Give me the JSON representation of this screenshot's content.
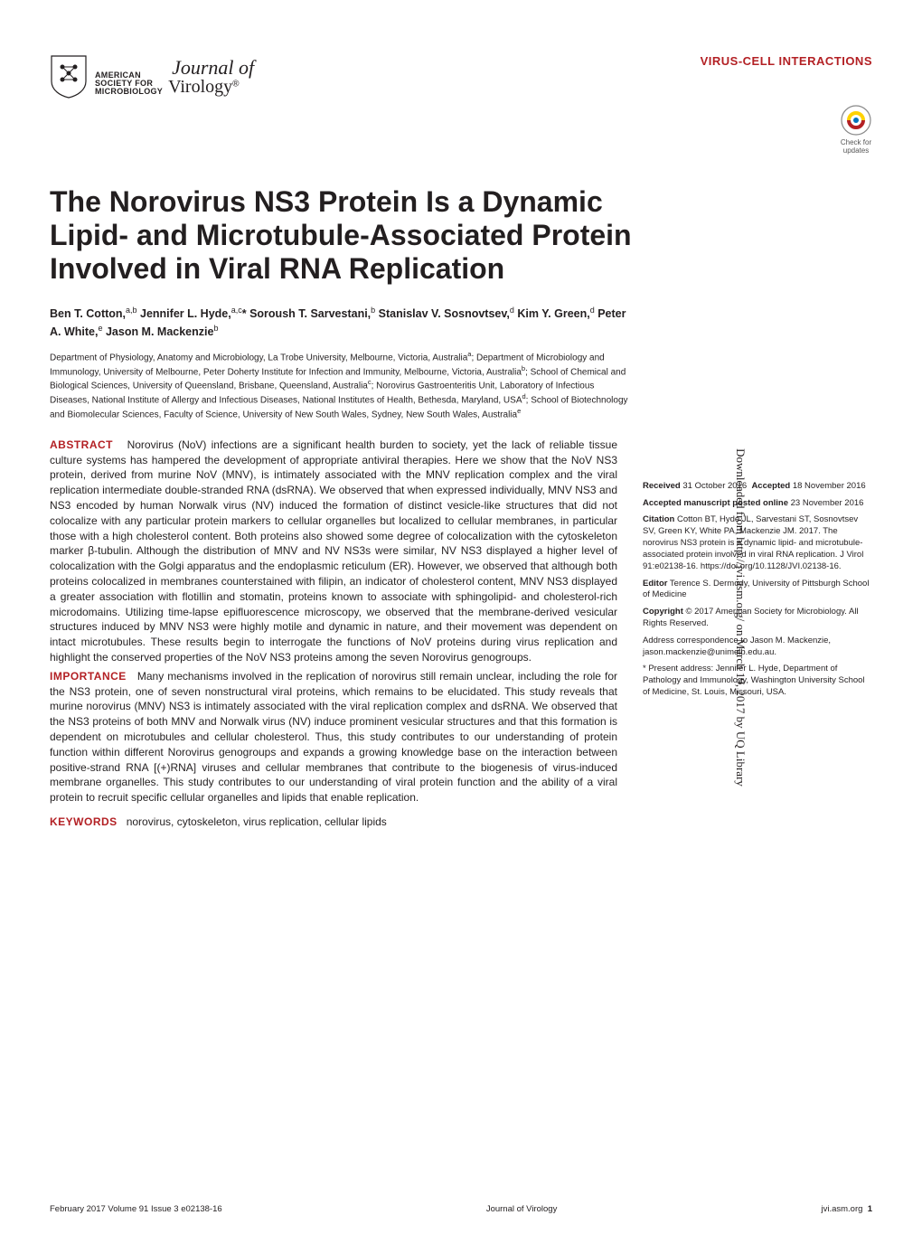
{
  "header": {
    "asm_line1": "AMERICAN",
    "asm_line2": "SOCIETY FOR",
    "asm_line3": "MICROBIOLOGY",
    "journal_name": "Journal of",
    "virology": "Virology",
    "reg_mark": "®",
    "section_label": "VIRUS-CELL INTERACTIONS",
    "crossmark_line1": "Check for",
    "crossmark_line2": "updates"
  },
  "title": "The Norovirus NS3 Protein Is a Dynamic Lipid- and Microtubule-Associated Protein Involved in Viral RNA Replication",
  "authors_html": "Ben T. Cotton,<sup>a,b</sup> Jennifer L. Hyde,<sup>a,c</sup>* Soroush T. Sarvestani,<sup>b</sup> Stanislav V. Sosnovtsev,<sup>d</sup> Kim Y. Green,<sup>d</sup> Peter A. White,<sup>e</sup> Jason M. Mackenzie<sup>b</sup>",
  "affiliations_html": "Department of Physiology, Anatomy and Microbiology, La Trobe University, Melbourne, Victoria, Australia<sup>a</sup>; Department of Microbiology and Immunology, University of Melbourne, Peter Doherty Institute for Infection and Immunity, Melbourne, Victoria, Australia<sup>b</sup>; School of Chemical and Biological Sciences, University of Queensland, Brisbane, Queensland, Australia<sup>c</sup>; Norovirus Gastroenteritis Unit, Laboratory of Infectious Diseases, National Institute of Allergy and Infectious Diseases, National Institutes of Health, Bethesda, Maryland, USA<sup>d</sup>; School of Biotechnology and Biomolecular Sciences, Faculty of Science, University of New South Wales, Sydney, New South Wales, Australia<sup>e</sup>",
  "abstract": {
    "label": "ABSTRACT",
    "text": "Norovirus (NoV) infections are a significant health burden to society, yet the lack of reliable tissue culture systems has hampered the development of appropriate antiviral therapies. Here we show that the NoV NS3 protein, derived from murine NoV (MNV), is intimately associated with the MNV replication complex and the viral replication intermediate double-stranded RNA (dsRNA). We observed that when expressed individually, MNV NS3 and NS3 encoded by human Norwalk virus (NV) induced the formation of distinct vesicle-like structures that did not colocalize with any particular protein markers to cellular organelles but localized to cellular membranes, in particular those with a high cholesterol content. Both proteins also showed some degree of colocalization with the cytoskeleton marker β-tubulin. Although the distribution of MNV and NV NS3s were similar, NV NS3 displayed a higher level of colocalization with the Golgi apparatus and the endoplasmic reticulum (ER). However, we observed that although both proteins colocalized in membranes counterstained with filipin, an indicator of cholesterol content, MNV NS3 displayed a greater association with flotillin and stomatin, proteins known to associate with sphingolipid- and cholesterol-rich microdomains. Utilizing time-lapse epifluorescence microscopy, we observed that the membrane-derived vesicular structures induced by MNV NS3 were highly motile and dynamic in nature, and their movement was dependent on intact microtubules. These results begin to interrogate the functions of NoV proteins during virus replication and highlight the conserved properties of the NoV NS3 proteins among the seven Norovirus genogroups."
  },
  "importance": {
    "label": "IMPORTANCE",
    "text": "Many mechanisms involved in the replication of norovirus still remain unclear, including the role for the NS3 protein, one of seven nonstructural viral proteins, which remains to be elucidated. This study reveals that murine norovirus (MNV) NS3 is intimately associated with the viral replication complex and dsRNA. We observed that the NS3 proteins of both MNV and Norwalk virus (NV) induce prominent vesicular structures and that this formation is dependent on microtubules and cellular cholesterol. Thus, this study contributes to our understanding of protein function within different Norovirus genogroups and expands a growing knowledge base on the interaction between positive-strand RNA [(+)RNA] viruses and cellular membranes that contribute to the biogenesis of virus-induced membrane organelles. This study contributes to our understanding of viral protein function and the ability of a viral protein to recruit specific cellular organelles and lipids that enable replication."
  },
  "keywords": {
    "label": "KEYWORDS",
    "text": "norovirus, cytoskeleton, virus replication, cellular lipids"
  },
  "meta": {
    "received_label": "Received",
    "received_date": "31 October 2016",
    "accepted_label": "Accepted",
    "accepted_date": "18 November 2016",
    "posted_label": "Accepted manuscript posted online",
    "posted_date": "23 November 2016",
    "citation_label": "Citation",
    "citation_text": "Cotton BT, Hyde JL, Sarvestani ST, Sosnovtsev SV, Green KY, White PA, Mackenzie JM. 2017. The norovirus NS3 protein is a dynamic lipid- and microtubule-associated protein involved in viral RNA replication. J Virol 91:e02138-16. https://doi.org/10.1128/JVI.02138-16.",
    "editor_label": "Editor",
    "editor_text": "Terence S. Dermody, University of Pittsburgh School of Medicine",
    "copyright_label": "Copyright",
    "copyright_text": "© 2017 American Society for Microbiology. All Rights Reserved.",
    "correspondence": "Address correspondence to Jason M. Mackenzie, jason.mackenzie@unimelb.edu.au.",
    "present_address": "* Present address: Jennifer L. Hyde, Department of Pathology and Immunology, Washington University School of Medicine, St. Louis, Missouri, USA."
  },
  "footer": {
    "left": "February 2017   Volume 91   Issue 3   e02138-16",
    "center": "Journal of Virology",
    "right_site": "jvi.asm.org",
    "right_page": "1"
  },
  "side_text": "Downloaded from http://jvi.asm.org/ on March 19, 2017 by UQ Library",
  "colors": {
    "accent_red": "#b32024",
    "text": "#231f20",
    "blue": "#0072bc",
    "orange": "#f7941e",
    "yellow": "#ffd200"
  }
}
